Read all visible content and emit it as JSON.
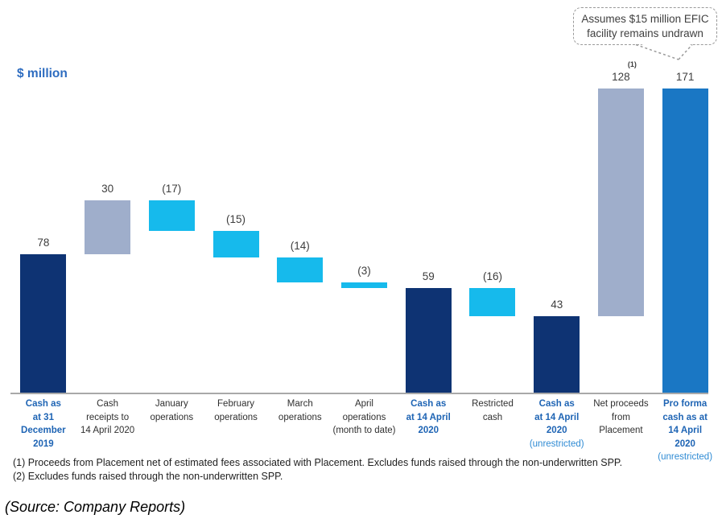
{
  "unit_label": "$ million",
  "callout": {
    "text": "Assumes $15 million EFIC facility remains undrawn"
  },
  "chart_data": {
    "type": "bar",
    "subtype": "waterfall",
    "title": "",
    "unit_label": "$ million",
    "xlabel": "",
    "ylabel": "$ million",
    "ylim": [
      0,
      171
    ],
    "grid": false,
    "legend": false,
    "colors": {
      "navy": "#0e3373",
      "gray": "#9faecb",
      "cyan": "#16baec",
      "blue": "#1a77c4"
    },
    "bars": [
      {
        "category": "Cash as at 31 December 2019",
        "category_lines": [
          "Cash as",
          "at 31",
          "December",
          "2019"
        ],
        "category_suffix": "",
        "emphasis": true,
        "value": 78,
        "label": "78",
        "superscript": "",
        "start": 0,
        "end": 78,
        "color": "navy"
      },
      {
        "category": "Cash receipts to 14 April 2020",
        "category_lines": [
          "Cash",
          "receipts to",
          "14 April 2020"
        ],
        "category_suffix": "",
        "emphasis": false,
        "value": 30,
        "label": "30",
        "superscript": "",
        "start": 78,
        "end": 108,
        "color": "gray"
      },
      {
        "category": "January operations",
        "category_lines": [
          "January",
          "operations"
        ],
        "category_suffix": "",
        "emphasis": false,
        "value": -17,
        "label": "(17)",
        "superscript": "",
        "start": 91,
        "end": 108,
        "color": "cyan"
      },
      {
        "category": "February operations",
        "category_lines": [
          "February",
          "operations"
        ],
        "category_suffix": "",
        "emphasis": false,
        "value": -15,
        "label": "(15)",
        "superscript": "",
        "start": 76,
        "end": 91,
        "color": "cyan"
      },
      {
        "category": "March operations",
        "category_lines": [
          "March",
          "operations"
        ],
        "category_suffix": "",
        "emphasis": false,
        "value": -14,
        "label": "(14)",
        "superscript": "",
        "start": 62,
        "end": 76,
        "color": "cyan"
      },
      {
        "category": "April operations (month to date)",
        "category_lines": [
          "April",
          "operations",
          "(month to date)"
        ],
        "category_suffix": "",
        "emphasis": false,
        "value": -3,
        "label": "(3)",
        "superscript": "",
        "start": 59,
        "end": 62,
        "color": "cyan"
      },
      {
        "category": "Cash as at 14 April 2020",
        "category_lines": [
          "Cash as",
          "at 14 April",
          "2020"
        ],
        "category_suffix": "",
        "emphasis": true,
        "value": 59,
        "label": "59",
        "superscript": "",
        "start": 0,
        "end": 59,
        "color": "navy"
      },
      {
        "category": "Restricted cash",
        "category_lines": [
          "Restricted",
          "cash"
        ],
        "category_suffix": "",
        "emphasis": false,
        "value": -16,
        "label": "(16)",
        "superscript": "",
        "start": 43,
        "end": 59,
        "color": "cyan"
      },
      {
        "category": "Cash as at 14 April 2020 (unrestricted)",
        "category_lines": [
          "Cash as",
          "at 14 April",
          "2020"
        ],
        "category_suffix": "(unrestricted)",
        "emphasis": true,
        "value": 43,
        "label": "43",
        "superscript": "",
        "start": 0,
        "end": 43,
        "color": "navy"
      },
      {
        "category": "Net proceeds from Placement",
        "category_lines": [
          "Net proceeds",
          "from",
          "Placement"
        ],
        "category_suffix": "",
        "emphasis": false,
        "value": 128,
        "label": "128",
        "superscript": "(1)",
        "start": 43,
        "end": 171,
        "color": "gray"
      },
      {
        "category": "Pro forma cash as at 14 April 2020 (unrestricted)",
        "category_lines": [
          "Pro forma",
          "cash as at",
          "14 April",
          "2020"
        ],
        "category_suffix": "(unrestricted)",
        "emphasis": true,
        "value": 171,
        "label": "171",
        "superscript": "",
        "start": 0,
        "end": 171,
        "color": "blue"
      }
    ]
  },
  "footnotes": [
    "(1) Proceeds from Placement net of estimated fees associated with Placement. Excludes funds raised through the non-underwritten SPP.",
    "(2) Excludes funds raised through the non-underwritten SPP."
  ],
  "source": "(Source: Company Reports)"
}
